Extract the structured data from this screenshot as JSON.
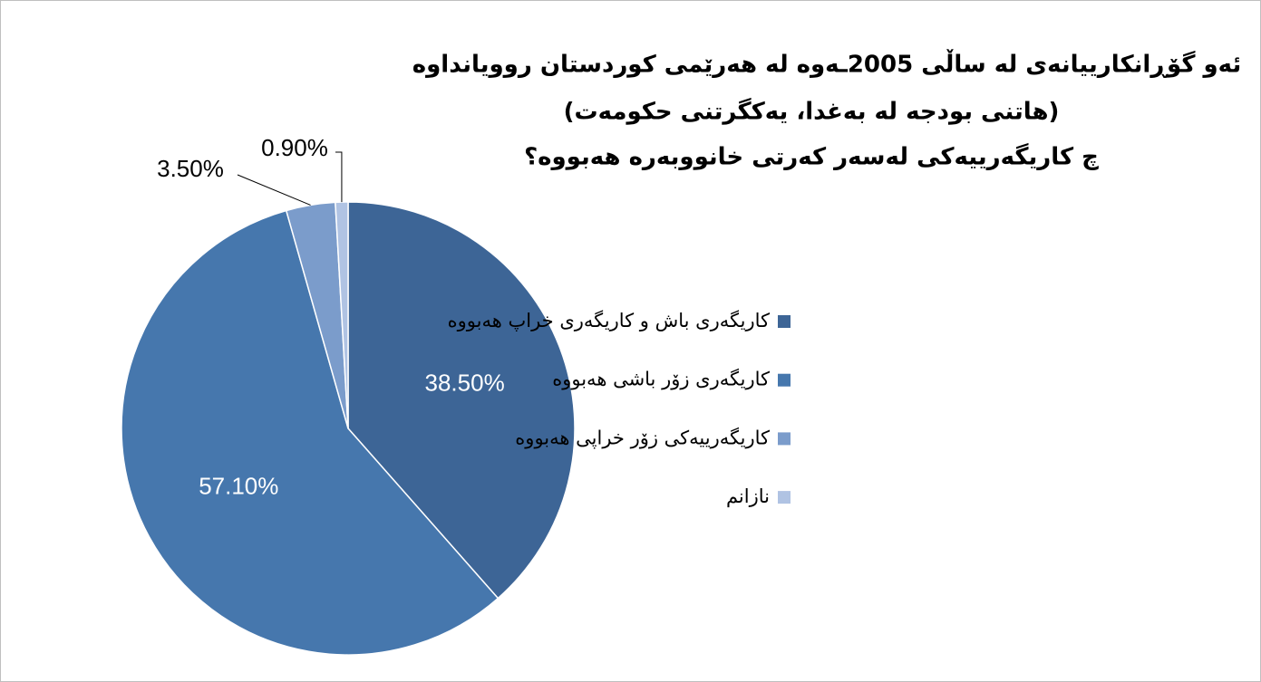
{
  "chart_data": {
    "type": "pie",
    "title": [
      "ئەو گۆڕانكارییانەی لە ساڵی  2005ـەوە لە هەرێمی كوردستان روویانداوە",
      "(هاتنی بودجە لە بەغدا، یەكگرتنی حكومەت)",
      "چ كاریگەرییەكی لەسەر كەرتی خانووبەرە هەبووە؟"
    ],
    "categories": [
      "كاریگەری باش و كاریگەری خراپ هەبووە",
      "كاریگەری زۆر باشی هەبووە",
      "كاریگەرییەكی زۆر خراپی هەبووە",
      "نازانم"
    ],
    "values": [
      38.5,
      57.1,
      3.5,
      0.9
    ],
    "value_labels": [
      "38.50%",
      "57.10%",
      "3.50%",
      "0.90%"
    ],
    "colors": [
      "#3d6596",
      "#4677ad",
      "#7b9ccb",
      "#b0c3e3"
    ],
    "legend": "right"
  }
}
